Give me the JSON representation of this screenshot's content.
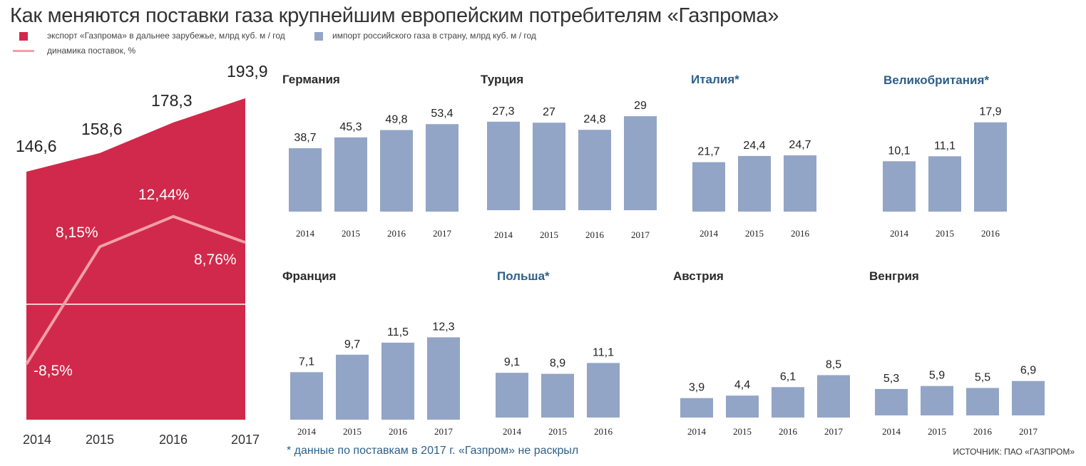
{
  "title": "Как меняются поставки газа крупнейшим европейским потребителям «Газпрома»",
  "legend": {
    "export": "экспорт «Газпрома» в дальнее зарубежье, млрд куб. м / год",
    "dynamics": "динамика поставок, %",
    "import": "импорт российского газа в страну, млрд куб. м / год"
  },
  "colors": {
    "export": "#d1294b",
    "dynamics": "#f2a0a4",
    "import": "#93a5c6",
    "title_dark": "#2b2b2b",
    "title_blue": "#2d5f87"
  },
  "footnote": "* данные по поставкам в 2017 г. «Газпром» не раскрыл",
  "source": "ИСТОЧНИК: ПАО «ГАЗПРОМ»",
  "chart_data": [
    {
      "type": "area",
      "categories": [
        "2014",
        "2015",
        "2016",
        "2017"
      ],
      "series": [
        {
          "name": "экспорт «Газпрома» в дальнее зарубежье, млрд куб. м / год",
          "values": [
            146.6,
            158.6,
            178.3,
            193.9
          ],
          "labels": [
            "146,6",
            "158,6",
            "178,3",
            "193,9"
          ]
        },
        {
          "name": "динамика поставок, %",
          "type": "line",
          "values": [
            -8.5,
            8.15,
            12.44,
            8.76
          ],
          "labels": [
            "-8,5%",
            "8,15%",
            "12,44%",
            "8,76%"
          ]
        }
      ]
    },
    {
      "type": "bar",
      "title": "Германия",
      "title_color": "dark",
      "categories": [
        "2014",
        "2015",
        "2016",
        "2017"
      ],
      "values": [
        38.7,
        45.3,
        49.8,
        53.4
      ],
      "labels": [
        "38,7",
        "45,3",
        "49,8",
        "53,4"
      ]
    },
    {
      "type": "bar",
      "title": "Турция",
      "title_color": "dark",
      "categories": [
        "2014",
        "2015",
        "2016",
        "2017"
      ],
      "values": [
        27.3,
        27,
        24.8,
        29
      ],
      "labels": [
        "27,3",
        "27",
        "24,8",
        "29"
      ]
    },
    {
      "type": "bar",
      "title": "Италия*",
      "title_color": "blue",
      "categories": [
        "2014",
        "2015",
        "2016"
      ],
      "values": [
        21.7,
        24.4,
        24.7
      ],
      "labels": [
        "21,7",
        "24,4",
        "24,7"
      ]
    },
    {
      "type": "bar",
      "title": "Великобритания*",
      "title_color": "blue",
      "categories": [
        "2014",
        "2015",
        "2016"
      ],
      "values": [
        10.1,
        11.1,
        17.9
      ],
      "labels": [
        "10,1",
        "11,1",
        "17,9"
      ]
    },
    {
      "type": "bar",
      "title": "Франция",
      "title_color": "dark",
      "categories": [
        "2014",
        "2015",
        "2016",
        "2017"
      ],
      "values": [
        7.1,
        9.7,
        11.5,
        12.3
      ],
      "labels": [
        "7,1",
        "9,7",
        "11,5",
        "12,3"
      ]
    },
    {
      "type": "bar",
      "title": "Польша*",
      "title_color": "blue",
      "categories": [
        "2014",
        "2015",
        "2016"
      ],
      "values": [
        9.1,
        8.9,
        11.1
      ],
      "labels": [
        "9,1",
        "8,9",
        "11,1"
      ]
    },
    {
      "type": "bar",
      "title": "Австрия",
      "title_color": "dark",
      "categories": [
        "2014",
        "2015",
        "2016",
        "2017"
      ],
      "values": [
        3.9,
        4.4,
        6.1,
        8.5
      ],
      "labels": [
        "3,9",
        "4,4",
        "6,1",
        "8,5"
      ]
    },
    {
      "type": "bar",
      "title": "Венгрия",
      "title_color": "dark",
      "categories": [
        "2014",
        "2015",
        "2016",
        "2017"
      ],
      "values": [
        5.3,
        5.9,
        5.5,
        6.9
      ],
      "labels": [
        "5,3",
        "5,9",
        "5,5",
        "6,9"
      ]
    }
  ]
}
